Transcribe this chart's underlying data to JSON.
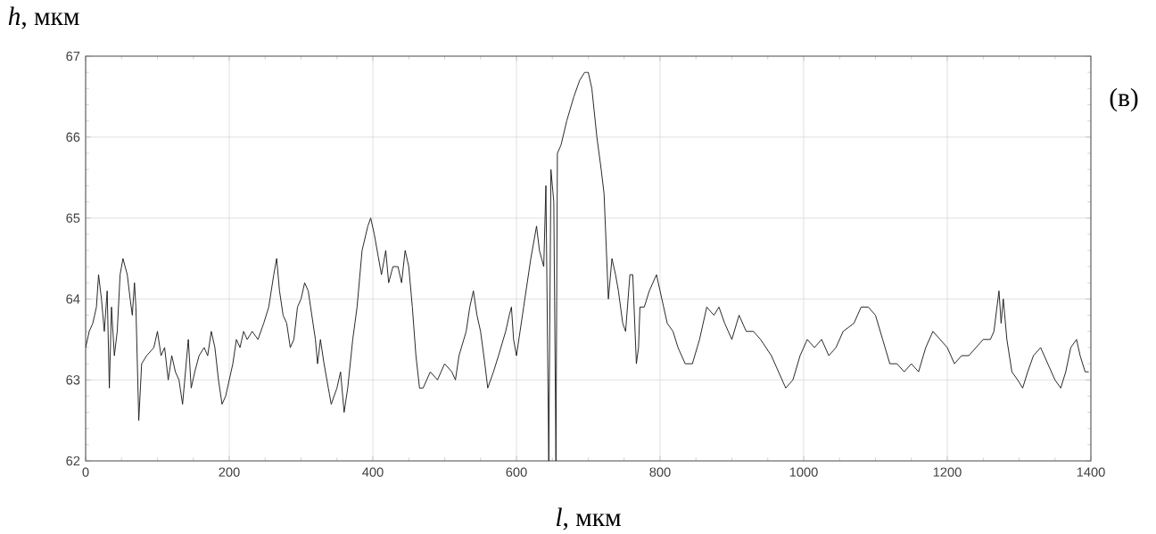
{
  "chart_data": {
    "type": "line",
    "xlabel": "*l*, мкм",
    "ylabel": "*h*, мкм",
    "annotations": [
      "(в)"
    ],
    "xlim": [
      0,
      1400
    ],
    "ylim": [
      62,
      67
    ],
    "xticks": [
      0,
      200,
      400,
      600,
      800,
      1000,
      1200,
      1400
    ],
    "yticks": [
      62,
      63,
      64,
      65,
      66,
      67
    ],
    "grid": true,
    "series": [
      {
        "color": "#1a1a1a",
        "x": [
          0,
          5,
          10,
          15,
          18,
          22,
          26,
          30,
          33,
          36,
          40,
          44,
          48,
          52,
          58,
          62,
          65,
          68,
          70,
          74,
          78,
          85,
          95,
          100,
          105,
          110,
          115,
          120,
          125,
          130,
          135,
          140,
          143,
          147,
          152,
          158,
          165,
          170,
          175,
          180,
          185,
          190,
          195,
          200,
          205,
          210,
          215,
          220,
          225,
          232,
          240,
          248,
          255,
          262,
          266,
          270,
          275,
          280,
          285,
          290,
          295,
          300,
          305,
          310,
          315,
          320,
          323,
          327,
          332,
          338,
          342,
          350,
          355,
          360,
          365,
          372,
          378,
          385,
          393,
          397,
          402,
          408,
          412,
          418,
          422,
          428,
          435,
          440,
          445,
          450,
          455,
          460,
          465,
          470,
          475,
          480,
          490,
          500,
          510,
          515,
          520,
          530,
          535,
          540,
          545,
          550,
          556,
          560,
          568,
          575,
          585,
          590,
          593,
          596,
          600,
          605,
          610,
          620,
          628,
          632,
          638,
          641,
          645,
          648,
          652,
          655,
          657,
          662,
          670,
          680,
          688,
          695,
          700,
          705,
          712,
          718,
          722,
          728,
          733,
          738,
          742,
          748,
          752,
          758,
          762,
          767,
          770,
          772,
          778,
          785,
          795,
          800,
          810,
          818,
          825,
          835,
          845,
          855,
          865,
          875,
          882,
          890,
          900,
          910,
          920,
          930,
          940,
          955,
          965,
          975,
          985,
          995,
          1005,
          1015,
          1025,
          1035,
          1045,
          1055,
          1070,
          1080,
          1090,
          1100,
          1110,
          1120,
          1130,
          1140,
          1150,
          1160,
          1170,
          1180,
          1190,
          1200,
          1210,
          1220,
          1230,
          1240,
          1250,
          1260,
          1265,
          1272,
          1275,
          1278,
          1283,
          1290,
          1298,
          1305,
          1312,
          1320,
          1330,
          1340,
          1350,
          1358,
          1365,
          1372,
          1380,
          1385,
          1392,
          1397
        ],
        "values": [
          63.4,
          63.6,
          63.7,
          63.9,
          64.3,
          64.0,
          63.6,
          64.1,
          62.9,
          63.9,
          63.3,
          63.6,
          64.3,
          64.5,
          64.3,
          64.0,
          63.8,
          64.2,
          63.9,
          62.5,
          63.2,
          63.3,
          63.4,
          63.6,
          63.3,
          63.4,
          63.0,
          63.3,
          63.1,
          63.0,
          62.7,
          63.2,
          63.5,
          62.9,
          63.1,
          63.3,
          63.4,
          63.3,
          63.6,
          63.4,
          63.0,
          62.7,
          62.8,
          63.0,
          63.2,
          63.5,
          63.4,
          63.6,
          63.5,
          63.6,
          63.5,
          63.7,
          63.9,
          64.3,
          64.5,
          64.1,
          63.8,
          63.7,
          63.4,
          63.5,
          63.9,
          64.0,
          64.2,
          64.1,
          63.8,
          63.5,
          63.2,
          63.5,
          63.2,
          62.9,
          62.7,
          62.9,
          63.1,
          62.6,
          62.9,
          63.5,
          63.9,
          64.6,
          64.9,
          65.0,
          64.8,
          64.5,
          64.3,
          64.6,
          64.2,
          64.4,
          64.4,
          64.2,
          64.6,
          64.4,
          63.9,
          63.3,
          62.9,
          62.9,
          63.0,
          63.1,
          63.0,
          63.2,
          63.1,
          63.0,
          63.3,
          63.6,
          63.9,
          64.1,
          63.8,
          63.6,
          63.2,
          62.9,
          63.1,
          63.3,
          63.6,
          63.8,
          63.9,
          63.5,
          63.3,
          63.6,
          63.9,
          64.5,
          64.9,
          64.6,
          64.4,
          65.4,
          62.0,
          65.6,
          65.2,
          62.0,
          65.8,
          65.9,
          66.2,
          66.5,
          66.7,
          66.8,
          66.8,
          66.6,
          66.0,
          65.6,
          65.3,
          64.0,
          64.5,
          64.3,
          64.1,
          63.7,
          63.6,
          64.3,
          64.3,
          63.2,
          63.4,
          63.9,
          63.9,
          64.1,
          64.3,
          64.1,
          63.7,
          63.6,
          63.4,
          63.2,
          63.2,
          63.5,
          63.9,
          63.8,
          63.9,
          63.7,
          63.5,
          63.8,
          63.6,
          63.6,
          63.5,
          63.3,
          63.1,
          62.9,
          63.0,
          63.3,
          63.5,
          63.4,
          63.5,
          63.3,
          63.4,
          63.6,
          63.7,
          63.9,
          63.9,
          63.8,
          63.5,
          63.2,
          63.2,
          63.1,
          63.2,
          63.1,
          63.4,
          63.6,
          63.5,
          63.4,
          63.2,
          63.3,
          63.3,
          63.4,
          63.5,
          63.5,
          63.6,
          64.1,
          63.7,
          64.0,
          63.5,
          63.1,
          63.0,
          62.9,
          63.1,
          63.3,
          63.4,
          63.2,
          63.0,
          62.9,
          63.1,
          63.4,
          63.5,
          63.3,
          63.1,
          63.1
        ]
      }
    ]
  }
}
